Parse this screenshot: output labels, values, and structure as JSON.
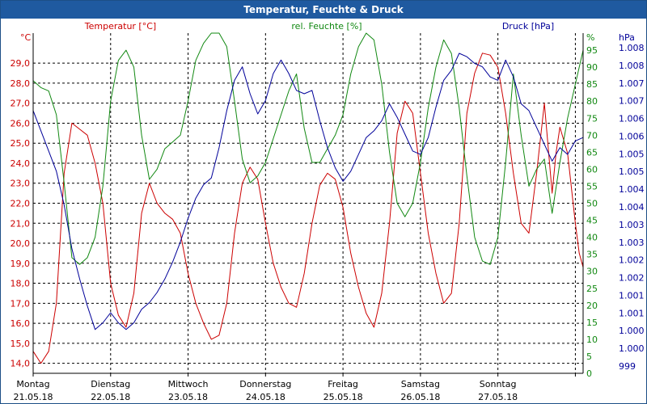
{
  "window": {
    "title": "Temperatur, Feuchte & Druck"
  },
  "colors": {
    "temperature": "#cc0000",
    "humidity": "#118811",
    "pressure": "#000099",
    "grid": "#000000",
    "titlebar": "#1f5aa0"
  },
  "chart_data": {
    "type": "line",
    "title": "Temperatur, Feuchte & Druck",
    "grid": true,
    "days": [
      {
        "name": "Montag",
        "date": "21.05.18"
      },
      {
        "name": "Dienstag",
        "date": "22.05.18"
      },
      {
        "name": "Mittwoch",
        "date": "23.05.18"
      },
      {
        "name": "Donnerstag",
        "date": "24.05.18"
      },
      {
        "name": "Freitag",
        "date": "25.05.18"
      },
      {
        "name": "Samstag",
        "date": "26.05.18"
      },
      {
        "name": "Sonntag",
        "date": "27.05.18"
      }
    ],
    "x_range_days": [
      0,
      7.1
    ],
    "axes": {
      "temperature": {
        "label": "Temperatur [°C]",
        "unit": "°C",
        "range": [
          13.5,
          30.5
        ],
        "ticks": [
          "14,0",
          "15,0",
          "16,0",
          "17,0",
          "18,0",
          "19,0",
          "20,0",
          "21,0",
          "22,0",
          "23,0",
          "24,0",
          "25,0",
          "26,0",
          "27,0",
          "28,0",
          "29,0"
        ]
      },
      "humidity": {
        "label": "rel. Feuchte [%]",
        "unit": "%",
        "range": [
          0,
          100
        ],
        "ticks": [
          "0",
          "5",
          "10",
          "15",
          "20",
          "25",
          "30",
          "35",
          "40",
          "45",
          "50",
          "55",
          "60",
          "65",
          "70",
          "75",
          "80",
          "85",
          "90",
          "95"
        ]
      },
      "pressure": {
        "label": "Druck [hPa]",
        "unit": "hPa",
        "range": [
          998.5,
          1008.6
        ],
        "ticks": [
          "999",
          "1.000",
          "1.000",
          "1.001",
          "1.001",
          "1.002",
          "1.002",
          "1.003",
          "1.003",
          "1.004",
          "1.004",
          "1.005",
          "1.005",
          "1.006",
          "1.006",
          "1.007",
          "1.007",
          "1.008",
          "1.008"
        ]
      }
    },
    "series": [
      {
        "name": "Temperatur [°C]",
        "axis": "temperature",
        "points": [
          [
            0.0,
            14.6
          ],
          [
            0.1,
            14.0
          ],
          [
            0.2,
            14.6
          ],
          [
            0.3,
            17.0
          ],
          [
            0.4,
            23.5
          ],
          [
            0.5,
            26.0
          ],
          [
            0.6,
            25.7
          ],
          [
            0.7,
            25.4
          ],
          [
            0.8,
            24.0
          ],
          [
            0.9,
            22.0
          ],
          [
            1.0,
            18.0
          ],
          [
            1.1,
            16.4
          ],
          [
            1.2,
            15.8
          ],
          [
            1.3,
            17.5
          ],
          [
            1.4,
            21.5
          ],
          [
            1.5,
            23.0
          ],
          [
            1.6,
            22.0
          ],
          [
            1.7,
            21.5
          ],
          [
            1.8,
            21.2
          ],
          [
            1.9,
            20.5
          ],
          [
            2.0,
            18.5
          ],
          [
            2.1,
            17.0
          ],
          [
            2.2,
            16.0
          ],
          [
            2.3,
            15.2
          ],
          [
            2.4,
            15.4
          ],
          [
            2.5,
            17.0
          ],
          [
            2.6,
            20.5
          ],
          [
            2.7,
            23.0
          ],
          [
            2.8,
            23.8
          ],
          [
            2.9,
            23.2
          ],
          [
            3.0,
            21.0
          ],
          [
            3.1,
            19.0
          ],
          [
            3.2,
            17.8
          ],
          [
            3.3,
            17.0
          ],
          [
            3.4,
            16.8
          ],
          [
            3.5,
            18.5
          ],
          [
            3.6,
            21.0
          ],
          [
            3.7,
            22.9
          ],
          [
            3.8,
            23.5
          ],
          [
            3.9,
            23.2
          ],
          [
            4.0,
            21.8
          ],
          [
            4.1,
            19.5
          ],
          [
            4.2,
            17.8
          ],
          [
            4.3,
            16.5
          ],
          [
            4.4,
            15.8
          ],
          [
            4.5,
            17.5
          ],
          [
            4.6,
            21.0
          ],
          [
            4.7,
            25.5
          ],
          [
            4.8,
            27.1
          ],
          [
            4.9,
            26.5
          ],
          [
            5.0,
            23.5
          ],
          [
            5.1,
            20.5
          ],
          [
            5.2,
            18.5
          ],
          [
            5.3,
            17.0
          ],
          [
            5.4,
            17.5
          ],
          [
            5.5,
            21.0
          ],
          [
            5.6,
            26.5
          ],
          [
            5.7,
            28.5
          ],
          [
            5.8,
            29.5
          ],
          [
            5.9,
            29.4
          ],
          [
            6.0,
            28.8
          ],
          [
            6.1,
            26.5
          ],
          [
            6.2,
            23.5
          ],
          [
            6.3,
            21.0
          ],
          [
            6.4,
            20.5
          ],
          [
            6.5,
            23.5
          ],
          [
            6.6,
            27.0
          ],
          [
            6.7,
            22.5
          ],
          [
            6.75,
            24.5
          ],
          [
            6.8,
            25.8
          ],
          [
            6.9,
            24.5
          ],
          [
            7.0,
            21.0
          ],
          [
            7.05,
            19.5
          ],
          [
            7.1,
            18.8
          ]
        ]
      },
      {
        "name": "rel. Feuchte [%]",
        "axis": "humidity",
        "points": [
          [
            0.0,
            86
          ],
          [
            0.1,
            84
          ],
          [
            0.2,
            83
          ],
          [
            0.3,
            76
          ],
          [
            0.4,
            56
          ],
          [
            0.5,
            34
          ],
          [
            0.6,
            32
          ],
          [
            0.7,
            34
          ],
          [
            0.8,
            40
          ],
          [
            0.9,
            55
          ],
          [
            1.0,
            80
          ],
          [
            1.1,
            92
          ],
          [
            1.2,
            95
          ],
          [
            1.3,
            90
          ],
          [
            1.4,
            70
          ],
          [
            1.5,
            57
          ],
          [
            1.6,
            60
          ],
          [
            1.7,
            66
          ],
          [
            1.8,
            68
          ],
          [
            1.9,
            70
          ],
          [
            2.0,
            80
          ],
          [
            2.1,
            92
          ],
          [
            2.2,
            97
          ],
          [
            2.3,
            100
          ],
          [
            2.4,
            100
          ],
          [
            2.5,
            96
          ],
          [
            2.6,
            80
          ],
          [
            2.7,
            63
          ],
          [
            2.8,
            56
          ],
          [
            2.9,
            58
          ],
          [
            3.0,
            62
          ],
          [
            3.1,
            69
          ],
          [
            3.2,
            76
          ],
          [
            3.3,
            83
          ],
          [
            3.4,
            88
          ],
          [
            3.5,
            72
          ],
          [
            3.6,
            62
          ],
          [
            3.7,
            62
          ],
          [
            3.8,
            66
          ],
          [
            3.9,
            70
          ],
          [
            4.0,
            76
          ],
          [
            4.1,
            88
          ],
          [
            4.2,
            96
          ],
          [
            4.3,
            100
          ],
          [
            4.4,
            98
          ],
          [
            4.5,
            85
          ],
          [
            4.6,
            65
          ],
          [
            4.7,
            50
          ],
          [
            4.8,
            46
          ],
          [
            4.9,
            50
          ],
          [
            5.0,
            62
          ],
          [
            5.1,
            78
          ],
          [
            5.2,
            90
          ],
          [
            5.3,
            98
          ],
          [
            5.4,
            94
          ],
          [
            5.5,
            78
          ],
          [
            5.6,
            58
          ],
          [
            5.7,
            40
          ],
          [
            5.8,
            33
          ],
          [
            5.9,
            32
          ],
          [
            6.0,
            40
          ],
          [
            6.1,
            62
          ],
          [
            6.2,
            88
          ],
          [
            6.3,
            70
          ],
          [
            6.4,
            55
          ],
          [
            6.5,
            60
          ],
          [
            6.6,
            63
          ],
          [
            6.7,
            47
          ],
          [
            6.8,
            62
          ],
          [
            6.9,
            75
          ],
          [
            7.0,
            85
          ],
          [
            7.05,
            90
          ],
          [
            7.1,
            95
          ]
        ]
      },
      {
        "name": "Druck [hPa]",
        "axis": "pressure",
        "points": [
          [
            0.0,
            1006.3
          ],
          [
            0.1,
            1005.7
          ],
          [
            0.2,
            1005.1
          ],
          [
            0.3,
            1004.5
          ],
          [
            0.4,
            1003.5
          ],
          [
            0.5,
            1002.2
          ],
          [
            0.6,
            1001.3
          ],
          [
            0.7,
            1000.5
          ],
          [
            0.8,
            999.8
          ],
          [
            0.9,
            1000.0
          ],
          [
            1.0,
            1000.3
          ],
          [
            1.1,
            1000.0
          ],
          [
            1.2,
            999.8
          ],
          [
            1.3,
            1000.0
          ],
          [
            1.4,
            1000.4
          ],
          [
            1.5,
            1000.6
          ],
          [
            1.6,
            1000.9
          ],
          [
            1.7,
            1001.3
          ],
          [
            1.8,
            1001.8
          ],
          [
            1.9,
            1002.4
          ],
          [
            2.0,
            1003.1
          ],
          [
            2.1,
            1003.7
          ],
          [
            2.2,
            1004.1
          ],
          [
            2.3,
            1004.3
          ],
          [
            2.4,
            1005.2
          ],
          [
            2.5,
            1006.3
          ],
          [
            2.6,
            1007.2
          ],
          [
            2.7,
            1007.6
          ],
          [
            2.8,
            1006.8
          ],
          [
            2.9,
            1006.2
          ],
          [
            3.0,
            1006.6
          ],
          [
            3.1,
            1007.4
          ],
          [
            3.2,
            1007.8
          ],
          [
            3.3,
            1007.4
          ],
          [
            3.4,
            1006.9
          ],
          [
            3.5,
            1006.8
          ],
          [
            3.6,
            1006.9
          ],
          [
            3.7,
            1006.0
          ],
          [
            3.8,
            1005.2
          ],
          [
            3.9,
            1004.6
          ],
          [
            4.0,
            1004.2
          ],
          [
            4.1,
            1004.5
          ],
          [
            4.2,
            1005.0
          ],
          [
            4.3,
            1005.5
          ],
          [
            4.4,
            1005.7
          ],
          [
            4.5,
            1006.0
          ],
          [
            4.6,
            1006.5
          ],
          [
            4.7,
            1006.1
          ],
          [
            4.8,
            1005.6
          ],
          [
            4.9,
            1005.1
          ],
          [
            5.0,
            1005.0
          ],
          [
            5.1,
            1005.5
          ],
          [
            5.2,
            1006.4
          ],
          [
            5.3,
            1007.2
          ],
          [
            5.4,
            1007.5
          ],
          [
            5.5,
            1008.0
          ],
          [
            5.6,
            1007.9
          ],
          [
            5.7,
            1007.7
          ],
          [
            5.8,
            1007.6
          ],
          [
            5.9,
            1007.3
          ],
          [
            6.0,
            1007.2
          ],
          [
            6.1,
            1007.8
          ],
          [
            6.2,
            1007.3
          ],
          [
            6.3,
            1006.5
          ],
          [
            6.4,
            1006.3
          ],
          [
            6.5,
            1005.8
          ],
          [
            6.6,
            1005.3
          ],
          [
            6.7,
            1004.8
          ],
          [
            6.8,
            1005.2
          ],
          [
            6.9,
            1005.0
          ],
          [
            7.0,
            1005.4
          ],
          [
            7.1,
            1005.5
          ]
        ]
      }
    ]
  }
}
